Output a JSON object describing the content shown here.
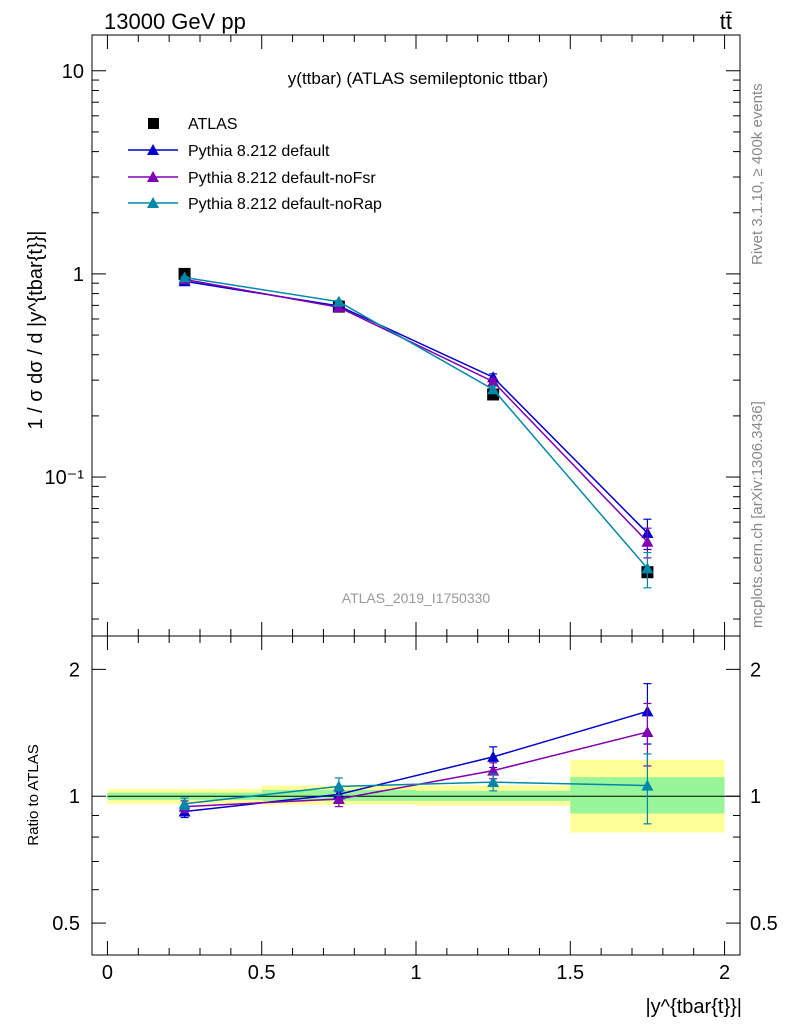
{
  "header": {
    "energy_label": "13000 GeV pp",
    "process_label": "tt̄"
  },
  "side_labels": {
    "rivet": "Rivet 3.1.10, ≥ 400k events",
    "mcplots": "mcplots.cern.ch [arXiv:1306.3436]"
  },
  "chart_data": [
    {
      "type": "line",
      "panel": "main",
      "title": "y(ttbar) (ATLAS semileptonic ttbar)",
      "watermark": "ATLAS_2019_I1750330",
      "ylabel": "1 / σ dσ / d |y^{tbar{t}}|",
      "yscale": "log",
      "ylim": [
        0.0165,
        15
      ],
      "xlim": [
        -0.05,
        2.05
      ],
      "x_ticks": [
        0,
        0.5,
        1,
        1.5,
        2
      ],
      "y_tick_labels": [
        "10",
        "1",
        "10⁻¹"
      ],
      "x": [
        0.25,
        0.75,
        1.25,
        1.75
      ],
      "series": [
        {
          "name": "ATLAS",
          "marker": "square",
          "color": "#000000",
          "values": [
            1.0,
            0.69,
            0.255,
            0.034
          ],
          "errors": [
            0.01,
            0.008,
            0.006,
            0.0015
          ]
        },
        {
          "name": "Pythia 8.212 default",
          "marker": "triangle",
          "color": "#0000cc",
          "values": [
            0.92,
            0.695,
            0.31,
            0.053
          ],
          "errors": [
            0.01,
            0.01,
            0.012,
            0.009
          ]
        },
        {
          "name": "Pythia 8.212 default-noFsr",
          "marker": "triangle",
          "color": "#8000b0",
          "values": [
            0.94,
            0.685,
            0.295,
            0.048
          ],
          "errors": [
            0.01,
            0.01,
            0.01,
            0.008
          ]
        },
        {
          "name": "Pythia 8.212 default-noRap",
          "marker": "triangle",
          "color": "#0088aa",
          "values": [
            0.96,
            0.73,
            0.27,
            0.0355
          ],
          "errors": [
            0.01,
            0.01,
            0.01,
            0.007
          ]
        }
      ]
    },
    {
      "type": "line",
      "panel": "ratio",
      "ylabel": "Ratio to ATLAS",
      "xlabel": "|y^{tbar{t}}|",
      "yscale": "log",
      "ylim": [
        0.42,
        2.4
      ],
      "xlim": [
        -0.05,
        2.05
      ],
      "x_ticks": [
        0,
        0.5,
        1,
        1.5,
        2
      ],
      "y_ticks": [
        0.5,
        1,
        2
      ],
      "x_tick_labels": [
        "0",
        "0.5",
        "1",
        "1.5",
        "2"
      ],
      "y_tick_labels": [
        "0.5",
        "1",
        "2"
      ],
      "bands": [
        {
          "x": [
            0,
            0.5
          ],
          "yellow": [
            0.96,
            1.04
          ],
          "green": [
            0.98,
            1.02
          ]
        },
        {
          "x": [
            0.5,
            1.0
          ],
          "yellow": [
            0.955,
            1.06
          ],
          "green": [
            0.975,
            1.035
          ]
        },
        {
          "x": [
            1.0,
            1.5
          ],
          "yellow": [
            0.95,
            1.06
          ],
          "green": [
            0.975,
            1.03
          ]
        },
        {
          "x": [
            1.5,
            2.0
          ],
          "yellow": [
            0.82,
            1.22
          ],
          "green": [
            0.91,
            1.11
          ]
        }
      ],
      "x": [
        0.25,
        0.75,
        1.25,
        1.75
      ],
      "series": [
        {
          "name": "Pythia 8.212 default",
          "color": "#0000cc",
          "values": [
            0.92,
            1.01,
            1.24,
            1.59
          ],
          "errors": [
            0.03,
            0.04,
            0.07,
            0.26
          ]
        },
        {
          "name": "Pythia 8.212 default-noFsr",
          "color": "#8000b0",
          "values": [
            0.945,
            0.985,
            1.15,
            1.42
          ],
          "errors": [
            0.03,
            0.04,
            0.05,
            0.24
          ]
        },
        {
          "name": "Pythia 8.212 default-noRap",
          "color": "#0088aa",
          "values": [
            0.96,
            1.055,
            1.08,
            1.06
          ],
          "errors": [
            0.03,
            0.05,
            0.05,
            0.2
          ]
        }
      ]
    }
  ]
}
